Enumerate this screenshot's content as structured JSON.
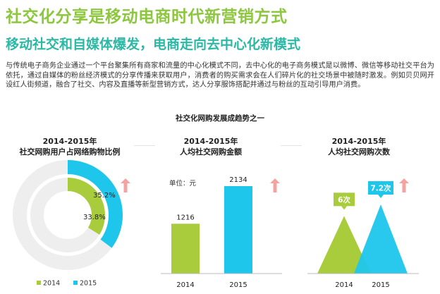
{
  "heading": {
    "title": "社交化分享是移动电商时代新营销方式",
    "subtitle": "移动社交和自媒体爆发，电商走向去中心化新模式"
  },
  "intro": "与传统电子商务企业通过一个平台聚集所有商家和流量的中心化模式不同，去中心化的电子商务模式是以微博、微信等移动社交平台为依托，通过自媒体的粉丝经济模式的分享传播来获取用户，消费者的购买需求会在人们碎片化的社交场景中被随时激发。例如贝贝网开设红人街频道，融合了社交、内容及直播等新型营销方式，达人分享服饰搭配并通过与粉丝的互动引导用户消费。",
  "section_title": "社交化网购发展成趋势之一",
  "colors": {
    "y2014": "#a8cc3c",
    "y2015": "#1ec6ec",
    "ring_bg": "#eeeeee",
    "arrow": "#f4a3a3"
  },
  "chart_data": [
    {
      "type": "pie",
      "title_line1": "2014-2015年",
      "title_line2": "社交网购用户占网络购物比例",
      "series": [
        {
          "name": "2014",
          "value": 33.8,
          "label": "33.8%"
        },
        {
          "name": "2015",
          "value": 35.2,
          "label": "35.2%"
        }
      ],
      "legend": [
        "2014",
        "2015"
      ]
    },
    {
      "type": "bar",
      "title_line1": "2014-2015年",
      "title_line2": "人均社交网购金额",
      "unit": "单位：元",
      "categories": [
        "2014",
        "2015"
      ],
      "values": [
        1216,
        2134
      ],
      "labels": [
        "1216",
        "2134"
      ],
      "ylim": [
        0,
        2134
      ]
    },
    {
      "type": "area",
      "title_line1": "2014-2015年",
      "title_line2": "人均社交网购次数",
      "categories": [
        "2014",
        "2015"
      ],
      "values": [
        6,
        7.2
      ],
      "labels": [
        "6次",
        "7.2次"
      ],
      "ylim": [
        0,
        7.2
      ]
    }
  ]
}
